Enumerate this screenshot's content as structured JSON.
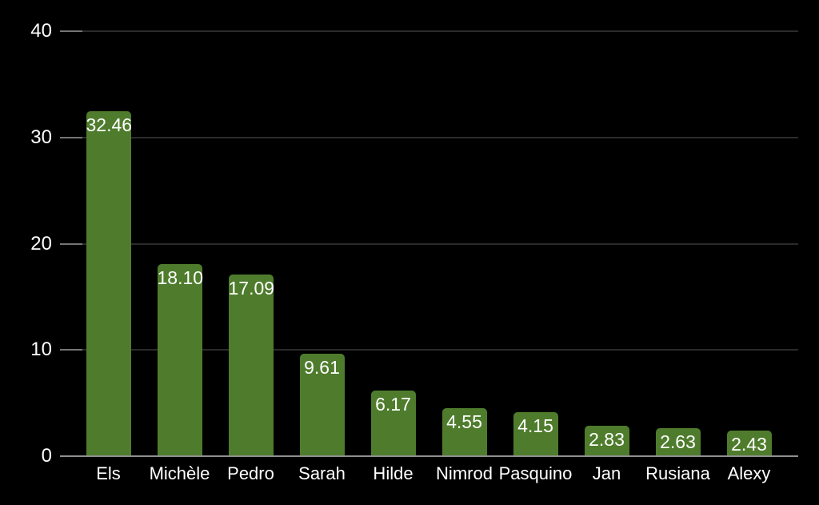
{
  "chart_data": {
    "type": "bar",
    "title": "",
    "xlabel": "",
    "ylabel": "",
    "categories": [
      "Els",
      "Michèle",
      "Pedro",
      "Sarah",
      "Hilde",
      "Nimrod",
      "Pasquino",
      "Jan",
      "Rusiana",
      "Alexy"
    ],
    "values": [
      32.46,
      18.1,
      17.09,
      9.61,
      6.17,
      4.55,
      4.15,
      2.83,
      2.63,
      2.43
    ],
    "value_labels": [
      "32.46",
      "18.10",
      "17.09",
      "9.61",
      "6.17",
      "4.55",
      "4.15",
      "2.83",
      "2.63",
      "2.43"
    ],
    "ylim": [
      0,
      40
    ],
    "yticks": [
      0,
      10,
      20,
      30,
      40
    ],
    "ytick_labels": [
      "0",
      "10",
      "20",
      "30",
      "40"
    ],
    "grid": true,
    "legend_position": "none",
    "colors": {
      "background": "#000000",
      "bar": "#4e7c2c",
      "gridline": "#2b2b2b",
      "tick": "#757575",
      "baseline": "#8f8f8f",
      "text": "#ffffff"
    }
  }
}
